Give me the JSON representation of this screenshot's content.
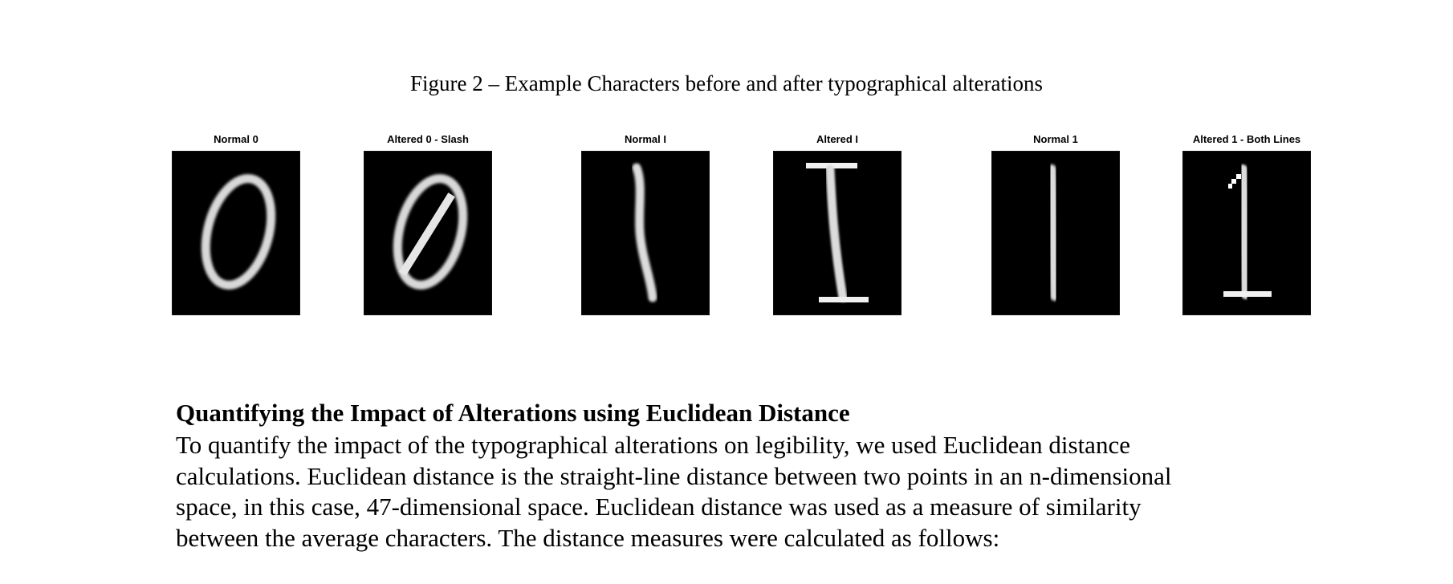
{
  "figure": {
    "caption": "Figure 2 – Example Characters before and after typographical alterations",
    "panels": [
      {
        "label": "Normal 0",
        "glyph": "normal-zero"
      },
      {
        "label": "Altered 0 - Slash",
        "glyph": "slashed-zero"
      },
      {
        "label": "Normal I",
        "glyph": "normal-capital-i"
      },
      {
        "label": "Altered I",
        "glyph": "serifed-capital-i"
      },
      {
        "label": "Normal 1",
        "glyph": "normal-one"
      },
      {
        "label": "Altered 1 - Both Lines",
        "glyph": "one-with-flag-and-base"
      }
    ]
  },
  "section": {
    "heading": "Quantifying the Impact of Alterations using Euclidean Distance",
    "body_lines": [
      "To quantify the impact of the typographical alterations on legibility, we used Euclidean distance",
      "calculations. Euclidean distance is the straight-line distance between two points in an n-dimensional",
      "space, in this case, 47-dimensional space. Euclidean distance was used as a measure of similarity",
      "between the average characters. The distance measures were calculated as follows:"
    ]
  }
}
